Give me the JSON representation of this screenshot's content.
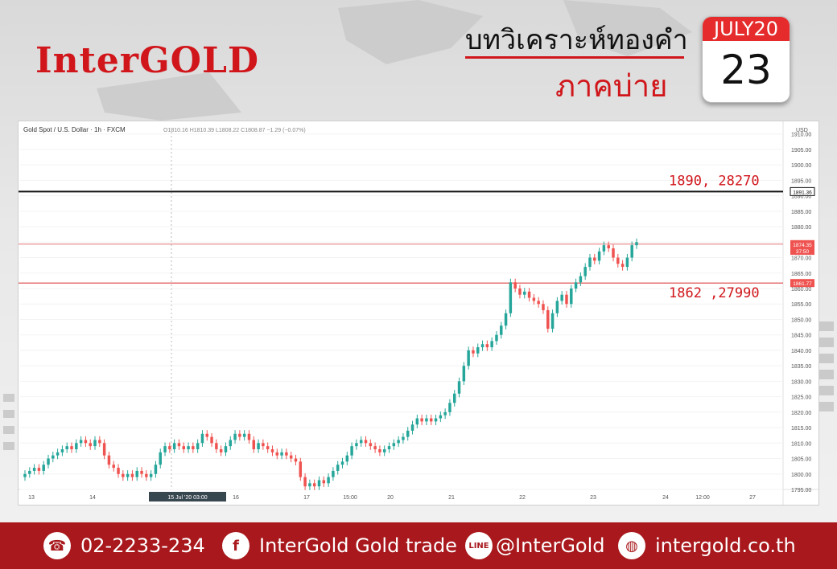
{
  "header": {
    "logo": "InterGOLD",
    "title_line1": "บทวิเคราะห์ทองคำ",
    "title_line2": "ภาคบ่าย",
    "calendar_month": "JULY20",
    "calendar_day": "23"
  },
  "chart_data": {
    "type": "candlestick",
    "instrument_label": "Gold Spot / U.S. Dollar · 1h · FXCM",
    "ohlc_label": "O1810.16 H1810.39 L1808.22 C1808.87 −1.29 (−0.07%)",
    "currency": "USD",
    "ylim": [
      1795,
      1912
    ],
    "y_ticks": [
      1910,
      1905,
      1900,
      1895,
      1890,
      1885,
      1880,
      1875,
      1870,
      1865,
      1860,
      1855,
      1850,
      1845,
      1840,
      1835,
      1830,
      1825,
      1820,
      1815,
      1810,
      1805,
      1800,
      1795
    ],
    "x_ticks": [
      "13",
      "14",
      "15 Jul '20   03:00",
      "16",
      "17",
      "15:00",
      "20",
      "21",
      "22",
      "23",
      "24",
      "12:00",
      "27"
    ],
    "price_tags": [
      "1891.36",
      "1874.35",
      "37:50",
      "1861.77"
    ],
    "levels": [
      {
        "value": 1891.36,
        "label": "1890, 28270",
        "color": "#111111"
      },
      {
        "value": 1874.35,
        "label": "",
        "color": "#e57373"
      },
      {
        "value": 1861.77,
        "label": "1862 ,27990",
        "color": "#e57373"
      }
    ],
    "up_color": "#26a69a",
    "down_color": "#ef5350",
    "closes": [
      1800,
      1801,
      1802,
      1801,
      1803,
      1805,
      1806,
      1807,
      1808,
      1809,
      1808,
      1810,
      1811,
      1810,
      1809,
      1811,
      1810,
      1806,
      1803,
      1802,
      1800,
      1799,
      1800,
      1799,
      1801,
      1800,
      1799,
      1800,
      1803,
      1807,
      1809,
      1808,
      1810,
      1809,
      1808,
      1809,
      1808,
      1810,
      1813,
      1812,
      1810,
      1808,
      1807,
      1809,
      1811,
      1813,
      1812,
      1813,
      1811,
      1808,
      1810,
      1809,
      1808,
      1807,
      1806,
      1807,
      1806,
      1805,
      1804,
      1799,
      1796,
      1797,
      1796,
      1798,
      1797,
      1799,
      1801,
      1803,
      1804,
      1806,
      1809,
      1810,
      1811,
      1810,
      1809,
      1808,
      1807,
      1808,
      1809,
      1810,
      1811,
      1812,
      1814,
      1816,
      1818,
      1817,
      1818,
      1817,
      1818,
      1819,
      1820,
      1823,
      1826,
      1830,
      1835,
      1840,
      1839,
      1841,
      1842,
      1841,
      1843,
      1845,
      1848,
      1852,
      1862,
      1860,
      1858,
      1859,
      1857,
      1856,
      1855,
      1853,
      1847,
      1852,
      1856,
      1858,
      1855,
      1860,
      1862,
      1864,
      1867,
      1870,
      1869,
      1872,
      1874,
      1873,
      1870,
      1868,
      1867,
      1870,
      1874,
      1875
    ]
  },
  "footer": {
    "phone": "02-2233-234",
    "facebook": "InterGold Gold trade",
    "line": "@InterGold",
    "website": "intergold.co.th"
  },
  "colors": {
    "brand_red": "#d0161b",
    "footer_red": "#a8181c"
  }
}
